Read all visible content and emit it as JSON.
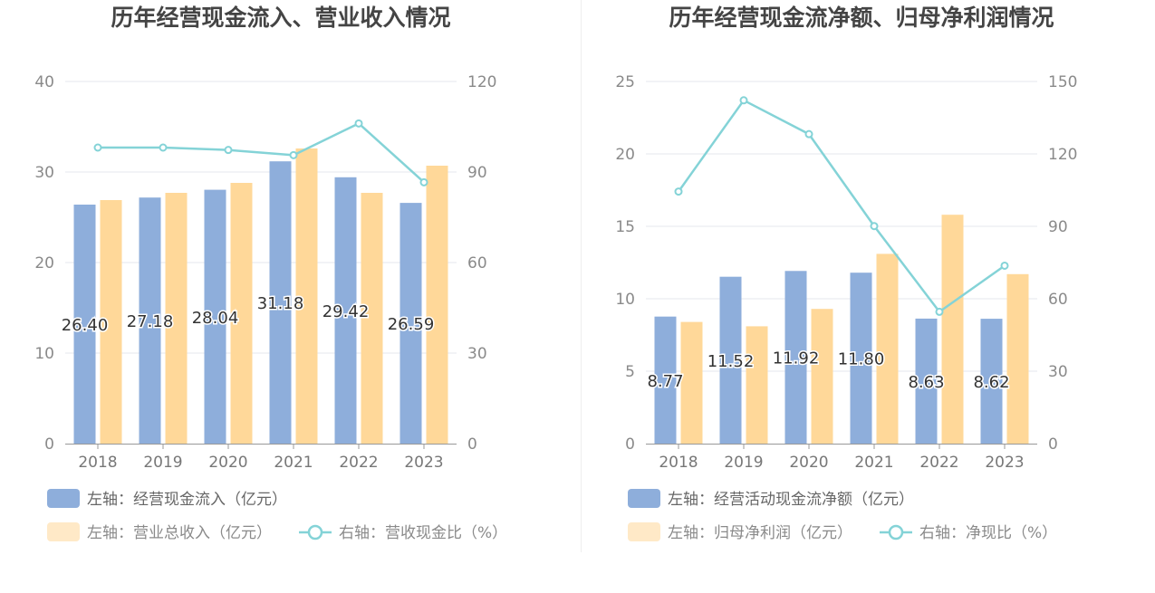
{
  "colors": {
    "bar_primary": "#8eaedb",
    "bar_secondary": "#ffd899",
    "bar_secondary_legend": "#ffe9c7",
    "line": "#84d3d7",
    "grid": "#e6e7ee",
    "axis": "#999999"
  },
  "chart_data": [
    {
      "type": "bar",
      "title": "历年经营现金流入、营业收入情况",
      "categories": [
        "2018",
        "2019",
        "2020",
        "2021",
        "2022",
        "2023"
      ],
      "left_axis": {
        "ylim": [
          0,
          40
        ],
        "ticks": [
          "0",
          "10",
          "20",
          "30",
          "40"
        ]
      },
      "right_axis": {
        "ylim": [
          0,
          120
        ],
        "ticks": [
          "0",
          "30",
          "60",
          "90",
          "120"
        ]
      },
      "grid": true,
      "legend_position": "bottom-left",
      "series": [
        {
          "name": "左轴：经营现金流入（亿元）",
          "kind": "bar",
          "axis": "left",
          "values": [
            26.4,
            27.18,
            28.04,
            31.18,
            29.42,
            26.59
          ],
          "labels": [
            "26.40",
            "27.18",
            "28.04",
            "31.18",
            "29.42",
            "26.59"
          ]
        },
        {
          "name": "左轴：营业总收入（亿元）",
          "kind": "bar",
          "axis": "left",
          "values": [
            26.9,
            27.7,
            28.8,
            32.6,
            27.7,
            30.7
          ]
        },
        {
          "name": "右轴：营收现金比（%）",
          "kind": "line",
          "axis": "right",
          "values": [
            98.1,
            98.1,
            97.3,
            95.6,
            106.1,
            86.6
          ]
        }
      ]
    },
    {
      "type": "bar",
      "title": "历年经营现金流净额、归母净利润情况",
      "categories": [
        "2018",
        "2019",
        "2020",
        "2021",
        "2022",
        "2023"
      ],
      "left_axis": {
        "ylim": [
          0,
          25
        ],
        "ticks": [
          "0",
          "5",
          "10",
          "15",
          "20",
          "25"
        ]
      },
      "right_axis": {
        "ylim": [
          0,
          150
        ],
        "ticks": [
          "0",
          "30",
          "60",
          "90",
          "120",
          "150"
        ]
      },
      "grid": true,
      "legend_position": "bottom-left",
      "series": [
        {
          "name": "左轴：经营活动现金流净额（亿元）",
          "kind": "bar",
          "axis": "left",
          "values": [
            8.77,
            11.52,
            11.92,
            11.8,
            8.63,
            8.62
          ],
          "labels": [
            "8.77",
            "11.52",
            "11.92",
            "11.80",
            "8.63",
            "8.62"
          ]
        },
        {
          "name": "左轴：归母净利润（亿元）",
          "kind": "bar",
          "axis": "left",
          "values": [
            8.4,
            8.1,
            9.3,
            13.1,
            15.8,
            11.7
          ]
        },
        {
          "name": "右轴：净现比（%）",
          "kind": "line",
          "axis": "right",
          "values": [
            104.4,
            142.2,
            128.2,
            90.1,
            54.6,
            73.7
          ]
        }
      ]
    }
  ]
}
